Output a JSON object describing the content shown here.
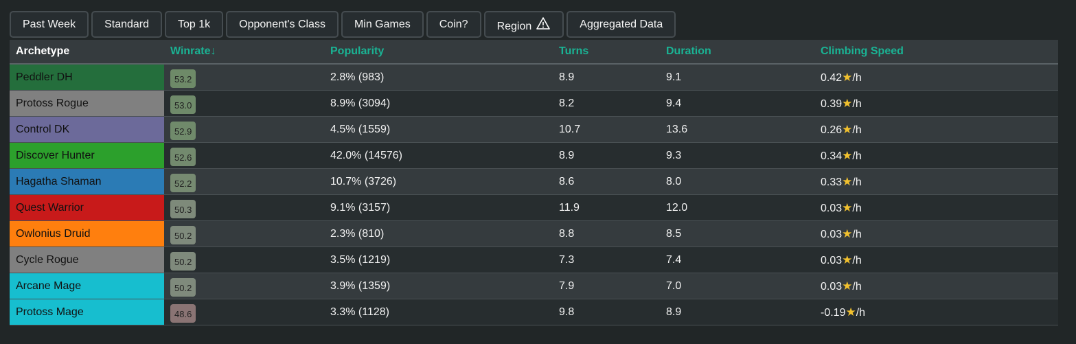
{
  "tabs": [
    "Past Week",
    "Standard",
    "Top 1k",
    "Opponent's Class",
    "Min Games",
    "Coin?",
    "Region",
    "Aggregated Data"
  ],
  "headers": [
    "Archetype",
    "Winrate↓",
    "Popularity",
    "Turns",
    "Duration",
    "Climbing Speed"
  ],
  "rows": [
    {
      "name": "Peddler DH",
      "color": "#246e3c",
      "winrate": "53.2",
      "wr_color": "#6e8a68",
      "popularity": "2.8% (983)",
      "turns": "8.9",
      "duration": "9.1",
      "climb": "0.42"
    },
    {
      "name": "Protoss Rogue",
      "color": "#808080",
      "winrate": "53.0",
      "wr_color": "#6f8a6a",
      "popularity": "8.9% (3094)",
      "turns": "8.2",
      "duration": "9.4",
      "climb": "0.39"
    },
    {
      "name": "Control DK",
      "color": "#6c6a9a",
      "winrate": "52.9",
      "wr_color": "#708a6b",
      "popularity": "4.5% (1559)",
      "turns": "10.7",
      "duration": "13.6",
      "climb": "0.26"
    },
    {
      "name": "Discover Hunter",
      "color": "#2ca02c",
      "winrate": "52.6",
      "wr_color": "#738a6e",
      "popularity": "42.0% (14576)",
      "turns": "8.9",
      "duration": "9.3",
      "climb": "0.34"
    },
    {
      "name": "Hagatha Shaman",
      "color": "#2b7bb5",
      "winrate": "52.2",
      "wr_color": "#768a71",
      "popularity": "10.7% (3726)",
      "turns": "8.6",
      "duration": "8.0",
      "climb": "0.33"
    },
    {
      "name": "Quest Warrior",
      "color": "#c81a1a",
      "winrate": "50.3",
      "wr_color": "#7e8a7a",
      "popularity": "9.1% (3157)",
      "turns": "11.9",
      "duration": "12.0",
      "climb": "0.03"
    },
    {
      "name": "Owlonius Druid",
      "color": "#ff7f0e",
      "winrate": "50.2",
      "wr_color": "#7f8a7c",
      "popularity": "2.3% (810)",
      "turns": "8.8",
      "duration": "8.5",
      "climb": "0.03"
    },
    {
      "name": "Cycle Rogue",
      "color": "#808080",
      "winrate": "50.2",
      "wr_color": "#7f8a7c",
      "popularity": "3.5% (1219)",
      "turns": "7.3",
      "duration": "7.4",
      "climb": "0.03"
    },
    {
      "name": "Arcane Mage",
      "color": "#17becf",
      "winrate": "50.2",
      "wr_color": "#7f8a7c",
      "popularity": "3.9% (1359)",
      "turns": "7.9",
      "duration": "7.0",
      "climb": "0.03"
    },
    {
      "name": "Protoss Mage",
      "color": "#17becf",
      "winrate": "48.6",
      "wr_color": "#8a7474",
      "popularity": "3.3% (1128)",
      "turns": "9.8",
      "duration": "8.9",
      "climb": "-0.19"
    }
  ],
  "climb_unit": "/h",
  "icons": {
    "region": "warning-triangle-icon",
    "climb": "star-icon"
  }
}
